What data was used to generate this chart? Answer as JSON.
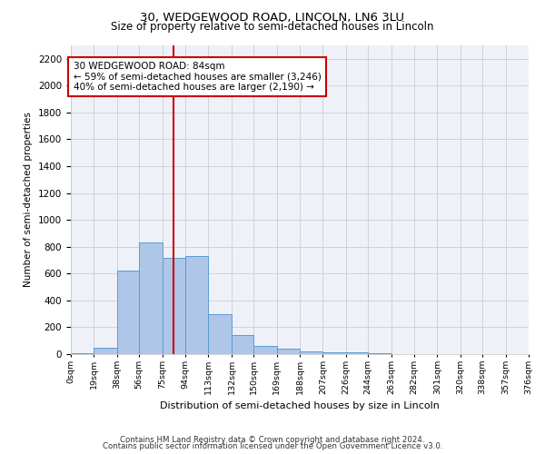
{
  "title_line1": "30, WEDGEWOOD ROAD, LINCOLN, LN6 3LU",
  "title_line2": "Size of property relative to semi-detached houses in Lincoln",
  "xlabel": "Distribution of semi-detached houses by size in Lincoln",
  "ylabel": "Number of semi-detached properties",
  "annotation_title": "30 WEDGEWOOD ROAD: 84sqm",
  "annotation_line2": "← 59% of semi-detached houses are smaller (3,246)",
  "annotation_line3": "40% of semi-detached houses are larger (2,190) →",
  "footnote1": "Contains HM Land Registry data © Crown copyright and database right 2024.",
  "footnote2": "Contains public sector information licensed under the Open Government Licence v3.0.",
  "bar_edges": [
    0,
    19,
    38,
    56,
    75,
    94,
    113,
    132,
    150,
    169,
    188,
    207,
    226,
    244,
    263,
    282,
    301,
    320,
    338,
    357,
    376
  ],
  "bar_heights": [
    10,
    50,
    620,
    830,
    720,
    730,
    300,
    140,
    60,
    40,
    20,
    15,
    15,
    5,
    0,
    0,
    0,
    0,
    0,
    0
  ],
  "tick_labels": [
    "0sqm",
    "19sqm",
    "38sqm",
    "56sqm",
    "75sqm",
    "94sqm",
    "113sqm",
    "132sqm",
    "150sqm",
    "169sqm",
    "188sqm",
    "207sqm",
    "226sqm",
    "244sqm",
    "263sqm",
    "282sqm",
    "301sqm",
    "320sqm",
    "338sqm",
    "357sqm",
    "376sqm"
  ],
  "bar_color": "#aec6e8",
  "bar_edge_color": "#5b9bd5",
  "vline_x": 84,
  "vline_color": "#cc0000",
  "annotation_box_color": "#cc0000",
  "ylim": [
    0,
    2300
  ],
  "yticks": [
    0,
    200,
    400,
    600,
    800,
    1000,
    1200,
    1400,
    1600,
    1800,
    2000,
    2200
  ],
  "grid_color": "#cccccc",
  "background_color": "#eef2f8",
  "fig_background": "#ffffff"
}
